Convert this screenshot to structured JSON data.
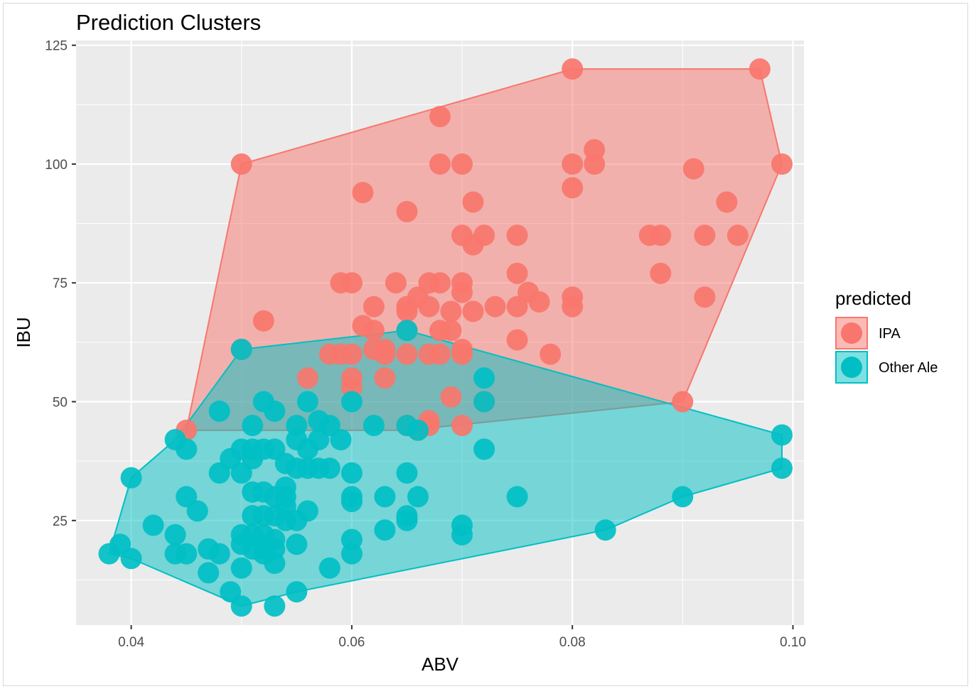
{
  "chart_data": {
    "type": "scatter",
    "title": "Prediction Clusters",
    "xlabel": "ABV",
    "ylabel": "IBU",
    "xlim": [
      0.035,
      0.101
    ],
    "ylim": [
      3,
      126
    ],
    "x_ticks": [
      0.04,
      0.06,
      0.08,
      0.1
    ],
    "x_tick_labels": [
      "0.04",
      "0.06",
      "0.08",
      "0.10"
    ],
    "y_ticks": [
      25,
      50,
      75,
      100,
      125
    ],
    "y_tick_labels": [
      "25",
      "50",
      "75",
      "100",
      "125"
    ],
    "grid": true,
    "legend": {
      "title": "predicted",
      "position": "right"
    },
    "series": [
      {
        "name": "IPA",
        "color": "#F8766D",
        "hull": [
          [
            0.05,
            100
          ],
          [
            0.08,
            120
          ],
          [
            0.097,
            120
          ],
          [
            0.099,
            100
          ],
          [
            0.09,
            50
          ],
          [
            0.065,
            44
          ],
          [
            0.045,
            44
          ]
        ],
        "points": [
          [
            0.05,
            100
          ],
          [
            0.068,
            110
          ],
          [
            0.068,
            100
          ],
          [
            0.07,
            100
          ],
          [
            0.061,
            94
          ],
          [
            0.065,
            90
          ],
          [
            0.071,
            92
          ],
          [
            0.08,
            120
          ],
          [
            0.097,
            120
          ],
          [
            0.099,
            100
          ],
          [
            0.08,
            100
          ],
          [
            0.082,
            103
          ],
          [
            0.082,
            100
          ],
          [
            0.08,
            95
          ],
          [
            0.091,
            99
          ],
          [
            0.094,
            92
          ],
          [
            0.087,
            85
          ],
          [
            0.088,
            85
          ],
          [
            0.092,
            85
          ],
          [
            0.095,
            85
          ],
          [
            0.088,
            77
          ],
          [
            0.092,
            72
          ],
          [
            0.09,
            50
          ],
          [
            0.07,
            85
          ],
          [
            0.072,
            85
          ],
          [
            0.071,
            83
          ],
          [
            0.075,
            85
          ],
          [
            0.075,
            77
          ],
          [
            0.059,
            75
          ],
          [
            0.06,
            75
          ],
          [
            0.064,
            75
          ],
          [
            0.067,
            75
          ],
          [
            0.068,
            75
          ],
          [
            0.07,
            75
          ],
          [
            0.07,
            73
          ],
          [
            0.066,
            72
          ],
          [
            0.065,
            70
          ],
          [
            0.065,
            69
          ],
          [
            0.067,
            70
          ],
          [
            0.069,
            69
          ],
          [
            0.071,
            69
          ],
          [
            0.073,
            70
          ],
          [
            0.075,
            70
          ],
          [
            0.076,
            73
          ],
          [
            0.077,
            71
          ],
          [
            0.08,
            72
          ],
          [
            0.08,
            70
          ],
          [
            0.062,
            70
          ],
          [
            0.052,
            67
          ],
          [
            0.061,
            66
          ],
          [
            0.062,
            65
          ],
          [
            0.065,
            65
          ],
          [
            0.068,
            65
          ],
          [
            0.069,
            65
          ],
          [
            0.07,
            61
          ],
          [
            0.075,
            63
          ],
          [
            0.078,
            60
          ],
          [
            0.05,
            61
          ],
          [
            0.058,
            60
          ],
          [
            0.059,
            60
          ],
          [
            0.06,
            60
          ],
          [
            0.062,
            61
          ],
          [
            0.063,
            61
          ],
          [
            0.063,
            60
          ],
          [
            0.065,
            60
          ],
          [
            0.067,
            60
          ],
          [
            0.068,
            60
          ],
          [
            0.07,
            60
          ],
          [
            0.056,
            55
          ],
          [
            0.06,
            55
          ],
          [
            0.06,
            53
          ],
          [
            0.063,
            55
          ],
          [
            0.069,
            51
          ],
          [
            0.072,
            50
          ],
          [
            0.065,
            45
          ],
          [
            0.066,
            44
          ],
          [
            0.067,
            46
          ],
          [
            0.067,
            45
          ],
          [
            0.07,
            45
          ],
          [
            0.045,
            44
          ]
        ]
      },
      {
        "name": "Other Ale",
        "color": "#00BFC4",
        "hull": [
          [
            0.038,
            18
          ],
          [
            0.04,
            34
          ],
          [
            0.044,
            42
          ],
          [
            0.05,
            61
          ],
          [
            0.065,
            65
          ],
          [
            0.099,
            43
          ],
          [
            0.099,
            36
          ],
          [
            0.09,
            30
          ],
          [
            0.083,
            23
          ],
          [
            0.055,
            10
          ],
          [
            0.05,
            7
          ],
          [
            0.04,
            17
          ]
        ],
        "points": [
          [
            0.05,
            61
          ],
          [
            0.065,
            65
          ],
          [
            0.072,
            55
          ],
          [
            0.072,
            50
          ],
          [
            0.06,
            50
          ],
          [
            0.052,
            50
          ],
          [
            0.053,
            48
          ],
          [
            0.048,
            48
          ],
          [
            0.056,
            50
          ],
          [
            0.051,
            45
          ],
          [
            0.055,
            45
          ],
          [
            0.057,
            46
          ],
          [
            0.058,
            45
          ],
          [
            0.062,
            45
          ],
          [
            0.065,
            45
          ],
          [
            0.066,
            44
          ],
          [
            0.044,
            42
          ],
          [
            0.045,
            40
          ],
          [
            0.055,
            42
          ],
          [
            0.056,
            40
          ],
          [
            0.057,
            42
          ],
          [
            0.059,
            42
          ],
          [
            0.072,
            40
          ],
          [
            0.099,
            43
          ],
          [
            0.099,
            36
          ],
          [
            0.05,
            40
          ],
          [
            0.051,
            40
          ],
          [
            0.052,
            40
          ],
          [
            0.053,
            40
          ],
          [
            0.049,
            38
          ],
          [
            0.051,
            38
          ],
          [
            0.054,
            37
          ],
          [
            0.055,
            36
          ],
          [
            0.056,
            36
          ],
          [
            0.057,
            36
          ],
          [
            0.058,
            36
          ],
          [
            0.06,
            35
          ],
          [
            0.065,
            35
          ],
          [
            0.048,
            35
          ],
          [
            0.05,
            35
          ],
          [
            0.04,
            34
          ],
          [
            0.054,
            32
          ],
          [
            0.052,
            31
          ],
          [
            0.051,
            31
          ],
          [
            0.053,
            30
          ],
          [
            0.054,
            30
          ],
          [
            0.06,
            30
          ],
          [
            0.06,
            29
          ],
          [
            0.063,
            30
          ],
          [
            0.066,
            30
          ],
          [
            0.075,
            30
          ],
          [
            0.09,
            30
          ],
          [
            0.045,
            30
          ],
          [
            0.046,
            27
          ],
          [
            0.054,
            28
          ],
          [
            0.056,
            27
          ],
          [
            0.051,
            26
          ],
          [
            0.052,
            26
          ],
          [
            0.053,
            26
          ],
          [
            0.054,
            25
          ],
          [
            0.055,
            25
          ],
          [
            0.065,
            26
          ],
          [
            0.065,
            25
          ],
          [
            0.042,
            24
          ],
          [
            0.07,
            24
          ],
          [
            0.07,
            22
          ],
          [
            0.083,
            23
          ],
          [
            0.063,
            23
          ],
          [
            0.05,
            22
          ],
          [
            0.051,
            22
          ],
          [
            0.052,
            22
          ],
          [
            0.053,
            21
          ],
          [
            0.044,
            22
          ],
          [
            0.06,
            21
          ],
          [
            0.039,
            20
          ],
          [
            0.05,
            20
          ],
          [
            0.051,
            19
          ],
          [
            0.052,
            19
          ],
          [
            0.053,
            19
          ],
          [
            0.055,
            20
          ],
          [
            0.047,
            19
          ],
          [
            0.048,
            18
          ],
          [
            0.044,
            18
          ],
          [
            0.045,
            18
          ],
          [
            0.038,
            18
          ],
          [
            0.052,
            18
          ],
          [
            0.06,
            18
          ],
          [
            0.04,
            17
          ],
          [
            0.053,
            16
          ],
          [
            0.05,
            15
          ],
          [
            0.047,
            14
          ],
          [
            0.058,
            15
          ],
          [
            0.049,
            10
          ],
          [
            0.055,
            10
          ],
          [
            0.05,
            7
          ],
          [
            0.053,
            7
          ]
        ]
      }
    ]
  }
}
